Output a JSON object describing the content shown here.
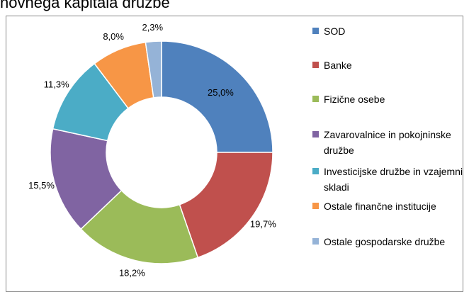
{
  "chart_data": {
    "type": "donut",
    "title": "novnega kapitala družbe",
    "categories": [
      "SOD",
      "Banke",
      "Fizične osebe",
      "Zavarovalnice in pokojninske družbe",
      "Investicijske družbe in vzajemni skladi",
      "Ostale finančne institucije",
      "Ostale gospodarske družbe"
    ],
    "values": [
      25.0,
      19.7,
      18.2,
      15.5,
      11.3,
      8.0,
      2.3
    ],
    "value_labels": [
      "25,0%",
      "19,7%",
      "18,2%",
      "15,5%",
      "11,3%",
      "8,0%",
      "2,3%"
    ],
    "colors": [
      "#4f81bd",
      "#c0504d",
      "#9bbb59",
      "#8064a2",
      "#4bacc6",
      "#f79646",
      "#95b3d7"
    ],
    "legend": "right"
  }
}
